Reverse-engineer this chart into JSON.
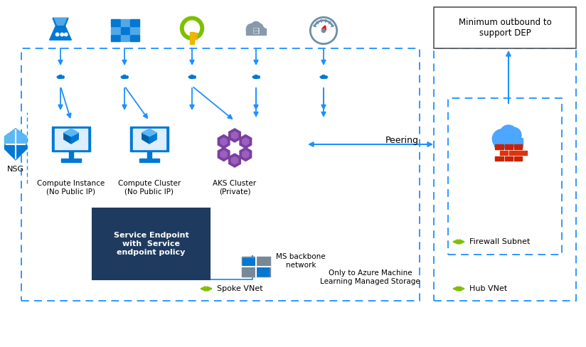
{
  "bg_color": "#ffffff",
  "dotted_color": "#1e90ff",
  "arrow_color": "#1e90ff",
  "green_color": "#7ec000",
  "dep_label": "Minimum outbound to\nsupport DEP",
  "spoke_label": "Spoke VNet",
  "hub_label": "Hub VNet",
  "firewall_subnet_label": "Firewall Subnet",
  "service_endpoint_label": "Service Endpoint\nwith  Service\nendpoint policy",
  "service_endpoint_bg": "#1e3a5f",
  "nsg_label": "NSG",
  "peering_label": "Peering",
  "ms_backbone_label": "MS backbone\nnetwork",
  "azure_ml_storage_label": "Only to Azure Machine\nLearning Managed Storage",
  "compute_instance_label": "Compute Instance\n(No Public IP)",
  "compute_cluster_label": "Compute Cluster\n(No Public IP)",
  "aks_cluster_label": "AKS Cluster\n(Private)"
}
